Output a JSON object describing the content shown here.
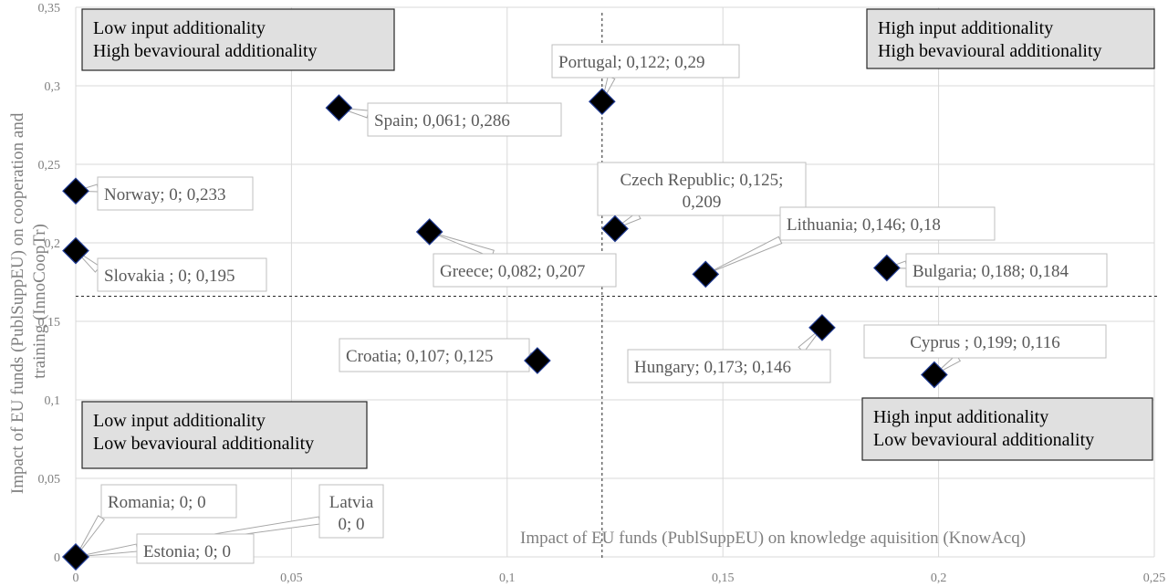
{
  "chart_data": {
    "type": "scatter",
    "xlabel": "Impact of EU funds (PublSuppEU) on knowledge aquisition (KnowAcq)",
    "ylabel_lines": [
      "Impact of EU funds (PublSuppEU) on cooperation and",
      "training (InnoCoopTr)"
    ],
    "xlim": [
      0,
      0.25
    ],
    "ylim": [
      0,
      0.35
    ],
    "x_ticks": [
      0,
      0.05,
      0.1,
      0.15,
      0.2,
      0.25
    ],
    "x_tick_labels": [
      "0",
      "0,05",
      "0,1",
      "0,15",
      "0,2",
      "0,25"
    ],
    "y_ticks": [
      0,
      0.05,
      0.1,
      0.15,
      0.2,
      0.25,
      0.3,
      0.35
    ],
    "y_tick_labels": [
      "0",
      "0,05",
      "0,1",
      "0,15",
      "0,2",
      "0,25",
      "0,3",
      "0,35"
    ],
    "grid": true,
    "divider_x": 0.122,
    "divider_y": 0.166,
    "points": [
      {
        "name": "Portugal",
        "x": 0.122,
        "y": 0.29,
        "label": [
          "Portugal; 0,122; 0,29"
        ]
      },
      {
        "name": "Spain",
        "x": 0.061,
        "y": 0.286,
        "label": [
          "Spain; 0,061; 0,286"
        ]
      },
      {
        "name": "Norway",
        "x": 0,
        "y": 0.233,
        "label": [
          "Norway; 0; 0,233"
        ]
      },
      {
        "name": "Czech Republic",
        "x": 0.125,
        "y": 0.209,
        "label": [
          "Czech Republic; 0,125;",
          "0,209"
        ]
      },
      {
        "name": "Greece",
        "x": 0.082,
        "y": 0.207,
        "label": [
          "Greece; 0,082; 0,207"
        ]
      },
      {
        "name": "Lithuania",
        "x": 0.146,
        "y": 0.18,
        "label": [
          "Lithuania; 0,146; 0,18"
        ]
      },
      {
        "name": "Slovakia",
        "x": 0,
        "y": 0.195,
        "label": [
          "Slovakia ; 0; 0,195"
        ]
      },
      {
        "name": "Bulgaria",
        "x": 0.188,
        "y": 0.184,
        "label": [
          "Bulgaria; 0,188; 0,184"
        ]
      },
      {
        "name": "Hungary",
        "x": 0.173,
        "y": 0.146,
        "label": [
          "Hungary; 0,173; 0,146"
        ]
      },
      {
        "name": "Croatia",
        "x": 0.107,
        "y": 0.125,
        "label": [
          "Croatia; 0,107; 0,125"
        ]
      },
      {
        "name": "Cyprus",
        "x": 0.199,
        "y": 0.116,
        "label": [
          "Cyprus ; 0,199; 0,116"
        ]
      },
      {
        "name": "Romania",
        "x": 0,
        "y": 0,
        "label": [
          "Romania; 0; 0"
        ]
      },
      {
        "name": "Latvia",
        "x": 0,
        "y": 0,
        "label": [
          "Latvia",
          "0; 0"
        ]
      },
      {
        "name": "Estonia",
        "x": 0,
        "y": 0,
        "label": [
          "Estonia; 0; 0"
        ]
      }
    ],
    "quadrant_boxes": [
      {
        "id": "top-left",
        "lines": [
          "Low input additionality",
          "High bevavioural additionality"
        ]
      },
      {
        "id": "top-right",
        "lines": [
          "High input additionality",
          "High bevavioural additionality"
        ]
      },
      {
        "id": "bottom-left",
        "lines": [
          "Low input additionality",
          "Low bevavioural additionality"
        ]
      },
      {
        "id": "bottom-right",
        "lines": [
          "High input additionality",
          "Low bevavioural additionality"
        ]
      }
    ]
  }
}
